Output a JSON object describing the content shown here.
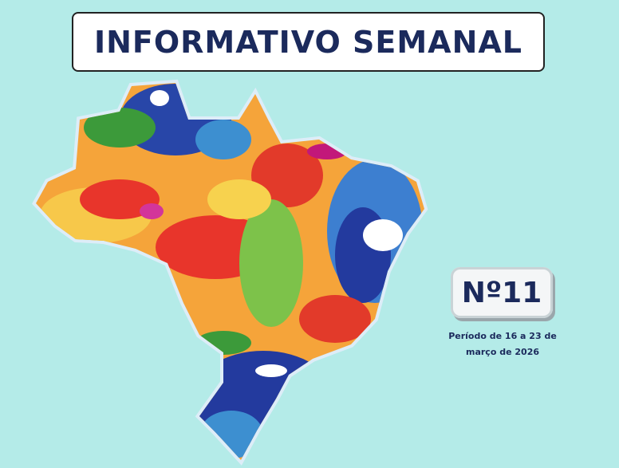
{
  "header": {
    "title": "INFORMATIVO SEMANAL"
  },
  "issue": {
    "number": "Nº11",
    "period": "Período de 16 a 23 de março de 2026"
  }
}
